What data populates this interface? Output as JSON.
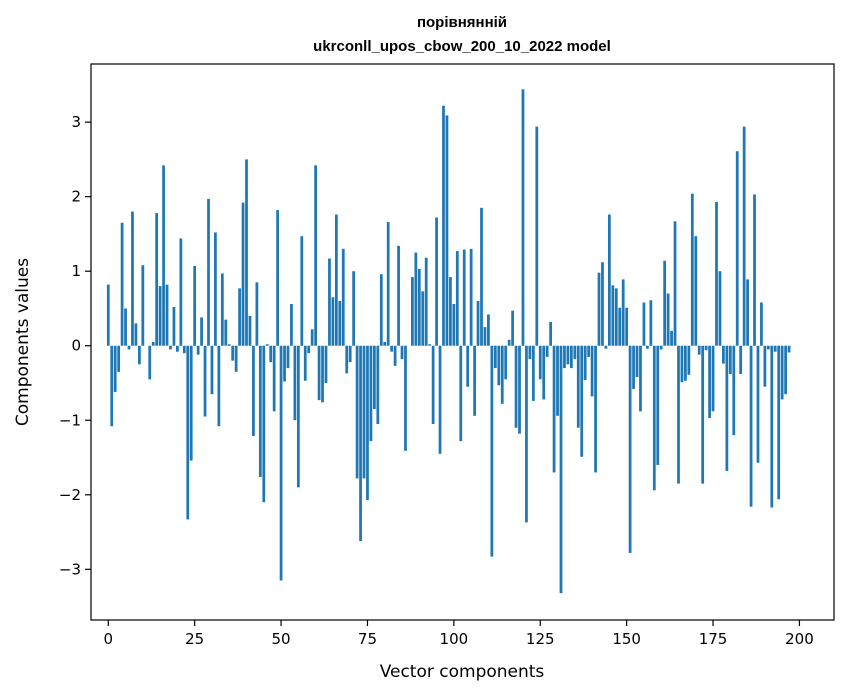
{
  "chart_data": {
    "type": "bar",
    "title_line1": "порівнянній",
    "title_line2": "ukrconll_upos_cbow_200_10_2022 model",
    "xlabel": "Vector components",
    "ylabel": "Components values",
    "xlim": [
      -5,
      210
    ],
    "ylim": [
      -3.68,
      3.78
    ],
    "xticks": [
      0,
      25,
      50,
      75,
      100,
      125,
      150,
      175,
      200
    ],
    "yticks": [
      -3,
      -2,
      -1,
      0,
      1,
      2,
      3
    ],
    "ytick_labels": [
      "−3",
      "−2",
      "−1",
      "0",
      "1",
      "2",
      "3"
    ],
    "bar_color": "#1f77b4",
    "grid": false,
    "values": [
      0.82,
      -1.08,
      -0.62,
      -0.35,
      1.65,
      0.5,
      -0.05,
      1.8,
      0.3,
      -0.25,
      1.08,
      0.0,
      -0.45,
      0.05,
      1.78,
      0.8,
      2.42,
      0.82,
      -0.05,
      0.52,
      -0.08,
      1.44,
      -0.1,
      -2.33,
      -1.54,
      1.07,
      -0.12,
      0.38,
      -0.95,
      1.97,
      -0.65,
      1.52,
      -1.08,
      0.97,
      0.35,
      0.02,
      -0.2,
      -0.35,
      0.77,
      1.92,
      2.5,
      0.4,
      -1.21,
      0.85,
      -1.76,
      -2.1,
      0.02,
      -0.22,
      -0.88,
      1.82,
      -3.15,
      -0.48,
      -0.3,
      0.56,
      -1.0,
      -1.9,
      1.47,
      -0.47,
      -0.1,
      0.22,
      2.42,
      -0.73,
      -0.76,
      -0.5,
      1.17,
      0.65,
      1.76,
      0.6,
      1.3,
      -0.37,
      -0.22,
      1.0,
      -1.78,
      -2.62,
      -1.78,
      -2.07,
      -1.28,
      -0.85,
      -1.05,
      0.96,
      0.05,
      1.66,
      -0.08,
      -0.27,
      1.34,
      -0.18,
      -1.41,
      0.0,
      0.92,
      1.25,
      1.03,
      0.73,
      1.18,
      0.02,
      -1.05,
      1.72,
      -1.45,
      3.22,
      3.09,
      0.92,
      0.56,
      1.27,
      -1.28,
      1.29,
      -0.55,
      1.3,
      -0.94,
      0.6,
      1.85,
      0.25,
      0.42,
      -2.83,
      -0.3,
      -0.53,
      -0.78,
      -0.45,
      0.08,
      0.47,
      -1.1,
      -1.18,
      3.44,
      -2.37,
      -0.18,
      -0.74,
      2.94,
      -0.45,
      -0.72,
      -0.15,
      0.32,
      -1.7,
      -0.94,
      -3.32,
      -0.3,
      -0.25,
      -0.3,
      -0.18,
      -1.1,
      -1.49,
      -0.46,
      -0.15,
      -0.68,
      -1.7,
      0.98,
      1.12,
      -0.04,
      1.76,
      0.81,
      0.77,
      0.51,
      0.89,
      0.51,
      -2.78,
      -0.58,
      -0.42,
      -0.88,
      0.58,
      -0.04,
      0.61,
      -1.94,
      -1.6,
      -0.05,
      1.14,
      0.7,
      0.2,
      1.67,
      -1.85,
      -0.49,
      -0.47,
      -0.39,
      2.04,
      1.47,
      -0.12,
      -1.85,
      -0.06,
      -0.97,
      -0.88,
      1.93,
      1.0,
      -0.24,
      -1.68,
      -0.38,
      -1.2,
      2.61,
      -0.38,
      2.94,
      0.89,
      -2.16,
      2.03,
      -1.57,
      0.58,
      -0.55,
      -0.05,
      -2.17,
      -0.08,
      -2.06,
      -0.72,
      -0.65,
      -0.09,
      0.0,
      0.0
    ]
  }
}
